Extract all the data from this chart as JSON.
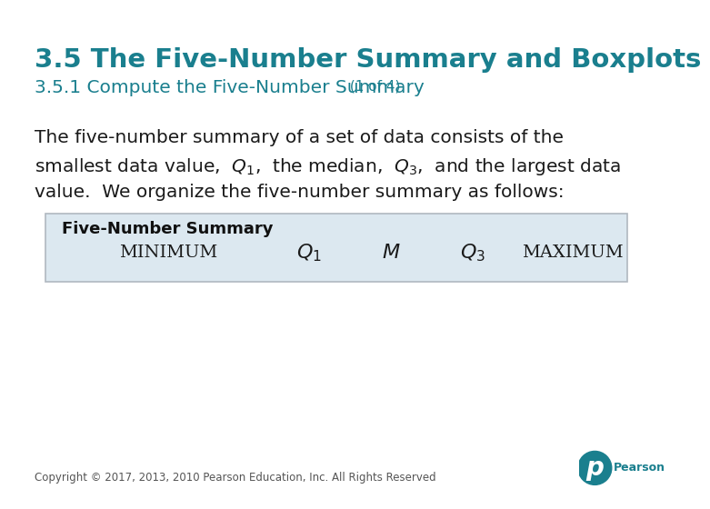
{
  "title": "3.5 The Five-Number Summary and Boxplots",
  "subtitle": "3.5.1 Compute the Five-Number Summary",
  "subtitle_suffix": " (1 of 4)",
  "title_color": "#1a7f8e",
  "subtitle_color": "#1a7f8e",
  "body_line1": "The five-number summary of a set of data consists of the",
  "body_line2": "smallest data value,  $Q_1$,  the median,  $Q_3$,  and the largest data",
  "body_line3": "value.  We organize the five-number summary as follows:",
  "box_bg_color": "#dce8f0",
  "box_border_color": "#b0b8c0",
  "box_label": "Five-Number Summary",
  "box_items": [
    "MINIMUM",
    "$Q_1$",
    "$M$",
    "$Q_3$",
    "MAXIMUM"
  ],
  "copyright_text": "Copyright © 2017, 2013, 2010 Pearson Education, Inc. All Rights Reserved",
  "pearson_color": "#1a7f8e",
  "bg_color": "#ffffff"
}
